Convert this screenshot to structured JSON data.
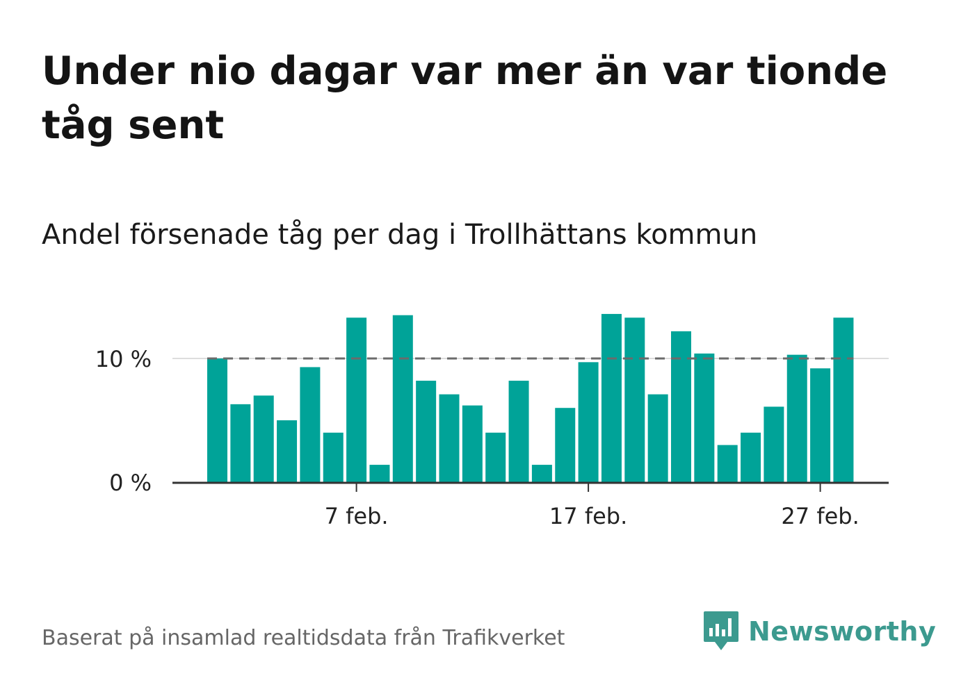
{
  "title": "Under nio dagar var mer än var tionde tåg sent",
  "subtitle": "Andel försenade tåg per dag i Trollhättans kommun",
  "source": "Baserat på insamlad realtidsdata från Trafikverket",
  "brand": {
    "name": "Newsworthy",
    "icon": "newsworthy-logo-icon",
    "color": "#3c9a8f"
  },
  "colors": {
    "bar": "#00a398",
    "reference_line": "#6b6b6b",
    "axis": "#333333",
    "grid": "#dddddd"
  },
  "chart_data": {
    "type": "bar",
    "x_start_day": 1,
    "month_label": "feb.",
    "values": [
      10,
      6.3,
      7,
      5,
      9.3,
      4,
      13.3,
      1.4,
      13.5,
      8.2,
      7.1,
      6.2,
      4,
      8.2,
      1.4,
      6,
      9.7,
      13.6,
      13.3,
      7.1,
      12.2,
      10.4,
      3,
      4,
      6.1,
      10.3,
      9.2,
      13.3
    ],
    "ylim": [
      0,
      15
    ],
    "yticks": [
      {
        "value": 0,
        "label": "0 %"
      },
      {
        "value": 10,
        "label": "10 %"
      }
    ],
    "xticks": [
      {
        "day": 7,
        "label": "7 feb."
      },
      {
        "day": 17,
        "label": "17 feb."
      },
      {
        "day": 27,
        "label": "27 feb."
      }
    ],
    "reference_line": {
      "value": 10,
      "style": "dashed"
    },
    "grid": true,
    "xlabel": "",
    "ylabel": ""
  }
}
